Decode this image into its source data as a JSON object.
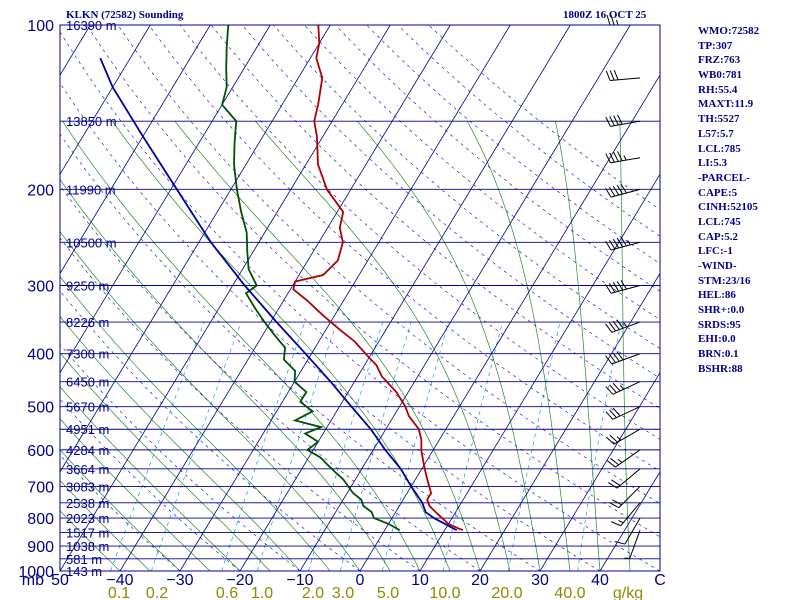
{
  "header": {
    "station_title": "KLKN (72582) Sounding",
    "valid_time": "1800Z 16 OCT 25"
  },
  "indices": [
    "WMO:72582",
    "TP:307",
    "FRZ:763",
    "WB0:781",
    "RH:55.4",
    "MAXT:11.9",
    "TH:5527",
    "L57:5.7",
    "LCL:785",
    "LI:5.3",
    "-PARCEL-",
    "CAPE:5",
    "CINH:52105",
    "LCL:745",
    "CAP:5.2",
    "LFC:-1",
    "-WIND-",
    "STM:23/16",
    "HEL:86",
    "SHR+:0.0",
    "SRDS:95",
    "EHI:0.0",
    "BRN:0.1",
    "BSHR:88"
  ],
  "colors": {
    "axes": "#00008b",
    "isobar": "#00008b",
    "isotherm": "#00008b",
    "dry_adiabat": "#0000cd",
    "moist_adiabat": "#228b22",
    "mixing_ratio": "#1e90ff",
    "temperature": "#b00000",
    "dewpoint": "#005000",
    "parcel": "#0000a0",
    "wind_barbs": "#000000",
    "text_labels": "#00008b",
    "mixing_labels": "#8b8b00"
  },
  "chart_data": {
    "type": "line",
    "title": "KLKN (72582) Sounding",
    "subtitle": "1800Z 16 OCT 25",
    "xlabel": "",
    "ylabel": "mb",
    "skew": true,
    "log_pressure": true,
    "xlim_at_1000mb": [
      -50,
      50
    ],
    "ylim": [
      1000,
      100
    ],
    "grid": true,
    "pressure_ticks": [
      100,
      200,
      300,
      400,
      500,
      600,
      700,
      800,
      900,
      1000
    ],
    "temperature_ticks": [
      -50,
      -40,
      -30,
      -20,
      -10,
      0,
      10,
      20,
      30,
      40,
      50
    ],
    "temperature_tick_labels": [
      "50",
      "−40",
      "−30",
      "−20",
      "−10",
      "0",
      "10",
      "20",
      "30",
      "40",
      "C"
    ],
    "unit_label_left": "mb",
    "mixing_ratio_lines": {
      "labels": [
        "0.1",
        "0.2",
        "0.6",
        "1.0",
        "2.0",
        "3.0",
        "5.0",
        "10.0",
        "20.0",
        "40.0"
      ],
      "unit": "g/kg"
    },
    "height_labels": [
      {
        "pressure": 100,
        "label": "16390 m"
      },
      {
        "pressure": 150,
        "label": "13850 m"
      },
      {
        "pressure": 200,
        "label": "11990 m"
      },
      {
        "pressure": 250,
        "label": "10500 m"
      },
      {
        "pressure": 300,
        "label": "9250 m"
      },
      {
        "pressure": 350,
        "label": "8226 m"
      },
      {
        "pressure": 400,
        "label": "7300 m"
      },
      {
        "pressure": 450,
        "label": "6450 m"
      },
      {
        "pressure": 500,
        "label": "5670 m"
      },
      {
        "pressure": 550,
        "label": "4951 m"
      },
      {
        "pressure": 600,
        "label": "4284 m"
      },
      {
        "pressure": 650,
        "label": "3664 m"
      },
      {
        "pressure": 700,
        "label": "3083 m"
      },
      {
        "pressure": 750,
        "label": "2538 m"
      },
      {
        "pressure": 800,
        "label": "2023 m"
      },
      {
        "pressure": 850,
        "label": "1517 m"
      },
      {
        "pressure": 900,
        "label": "1038 m"
      },
      {
        "pressure": 950,
        "label": "581 m"
      },
      {
        "pressure": 1000,
        "label": "143 m"
      }
    ],
    "series": [
      {
        "key": "temperature",
        "points": [
          [
            842,
            13
          ],
          [
            835,
            12
          ],
          [
            820,
            10
          ],
          [
            790,
            7.5
          ],
          [
            760,
            5
          ],
          [
            740,
            4
          ],
          [
            720,
            4
          ],
          [
            700,
            3
          ],
          [
            680,
            2
          ],
          [
            660,
            1
          ],
          [
            640,
            0
          ],
          [
            620,
            -1
          ],
          [
            600,
            -2
          ],
          [
            575,
            -3
          ],
          [
            550,
            -4.5
          ],
          [
            520,
            -7.5
          ],
          [
            500,
            -9
          ],
          [
            470,
            -12
          ],
          [
            440,
            -16
          ],
          [
            420,
            -18
          ],
          [
            400,
            -21
          ],
          [
            380,
            -24
          ],
          [
            360,
            -28
          ],
          [
            340,
            -32
          ],
          [
            320,
            -36
          ],
          [
            305,
            -39.5
          ],
          [
            295,
            -40
          ],
          [
            287,
            -36
          ],
          [
            270,
            -35
          ],
          [
            250,
            -36
          ],
          [
            235,
            -38
          ],
          [
            220,
            -39
          ],
          [
            200,
            -44
          ],
          [
            180,
            -48
          ],
          [
            160,
            -51
          ],
          [
            150,
            -53
          ],
          [
            140,
            -54
          ],
          [
            125,
            -56
          ],
          [
            115,
            -59
          ],
          [
            108,
            -60
          ],
          [
            100,
            -62
          ]
        ]
      },
      {
        "key": "dewpoint",
        "points": [
          [
            842,
            2.5
          ],
          [
            820,
            0
          ],
          [
            800,
            -3
          ],
          [
            780,
            -4
          ],
          [
            760,
            -6
          ],
          [
            740,
            -7
          ],
          [
            720,
            -9
          ],
          [
            700,
            -10.5
          ],
          [
            680,
            -12
          ],
          [
            660,
            -14
          ],
          [
            640,
            -16
          ],
          [
            620,
            -18
          ],
          [
            600,
            -21
          ],
          [
            580,
            -20
          ],
          [
            560,
            -23
          ],
          [
            545,
            -21
          ],
          [
            530,
            -26
          ],
          [
            510,
            -24
          ],
          [
            490,
            -27
          ],
          [
            470,
            -27
          ],
          [
            450,
            -30
          ],
          [
            430,
            -31
          ],
          [
            410,
            -34
          ],
          [
            390,
            -35
          ],
          [
            370,
            -38
          ],
          [
            350,
            -41
          ],
          [
            330,
            -44
          ],
          [
            310,
            -47
          ],
          [
            300,
            -46
          ],
          [
            280,
            -49
          ],
          [
            260,
            -51
          ],
          [
            240,
            -53
          ],
          [
            220,
            -56
          ],
          [
            200,
            -59
          ],
          [
            180,
            -62
          ],
          [
            165,
            -64
          ],
          [
            150,
            -66
          ],
          [
            140,
            -70
          ],
          [
            130,
            -71
          ],
          [
            120,
            -73
          ],
          [
            110,
            -75
          ],
          [
            100,
            -77
          ]
        ]
      },
      {
        "key": "parcel",
        "points": [
          [
            842,
            12
          ],
          [
            800,
            7
          ],
          [
            780,
            5
          ],
          [
            750,
            3.5
          ],
          [
            700,
            0
          ],
          [
            650,
            -3.5
          ],
          [
            600,
            -8
          ],
          [
            550,
            -12.5
          ],
          [
            500,
            -18
          ],
          [
            450,
            -24
          ],
          [
            400,
            -31
          ],
          [
            350,
            -39
          ],
          [
            300,
            -48
          ],
          [
            250,
            -58
          ],
          [
            200,
            -69
          ],
          [
            160,
            -80
          ],
          [
            130,
            -90
          ],
          [
            115,
            -95
          ]
        ]
      }
    ],
    "wind_barbs": [
      {
        "pressure": 842,
        "dir": 200,
        "speed_kt": 5
      },
      {
        "pressure": 800,
        "dir": 210,
        "speed_kt": 10
      },
      {
        "pressure": 750,
        "dir": 220,
        "speed_kt": 15
      },
      {
        "pressure": 700,
        "dir": 225,
        "speed_kt": 20
      },
      {
        "pressure": 650,
        "dir": 230,
        "speed_kt": 20
      },
      {
        "pressure": 600,
        "dir": 235,
        "speed_kt": 25
      },
      {
        "pressure": 550,
        "dir": 240,
        "speed_kt": 25
      },
      {
        "pressure": 500,
        "dir": 245,
        "speed_kt": 30
      },
      {
        "pressure": 450,
        "dir": 245,
        "speed_kt": 35
      },
      {
        "pressure": 400,
        "dir": 250,
        "speed_kt": 40
      },
      {
        "pressure": 350,
        "dir": 250,
        "speed_kt": 45
      },
      {
        "pressure": 300,
        "dir": 255,
        "speed_kt": 50
      },
      {
        "pressure": 250,
        "dir": 255,
        "speed_kt": 55
      },
      {
        "pressure": 200,
        "dir": 255,
        "speed_kt": 50
      },
      {
        "pressure": 175,
        "dir": 260,
        "speed_kt": 45
      },
      {
        "pressure": 150,
        "dir": 260,
        "speed_kt": 40
      },
      {
        "pressure": 125,
        "dir": 265,
        "speed_kt": 30
      },
      {
        "pressure": 100,
        "dir": 270,
        "speed_kt": 25
      }
    ]
  }
}
